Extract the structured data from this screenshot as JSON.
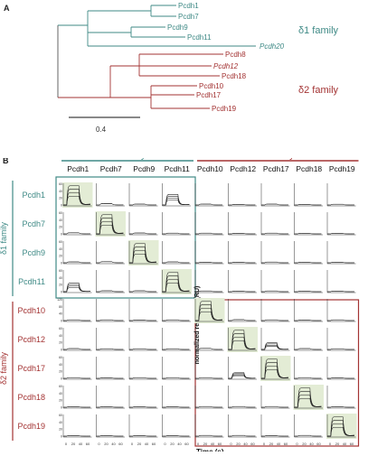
{
  "panel_a": {
    "label": "A",
    "group1": {
      "name": "δ1 family",
      "color": "#3f8a86",
      "members": [
        "Pcdh1",
        "Pcdh7",
        "Pcdh9",
        "Pcdh11",
        "Pcdh20"
      ]
    },
    "group2": {
      "name": "δ2 family",
      "color": "#a33333",
      "members": [
        "Pcdh8",
        "Pcdh12",
        "Pcdh18",
        "Pcdh10",
        "Pcdh17",
        "Pcdh19"
      ]
    },
    "italic_leaves": [
      "Pcdh20",
      "Pcdh12"
    ],
    "scale_label": "0.4"
  },
  "panel_b": {
    "label": "B",
    "delta1_header": "δ1 family",
    "delta2_header": "δ2 family",
    "delta1_color": "#3f8a86",
    "delta2_color": "#a33333",
    "highlight_color": "#e3ecd5",
    "columns": [
      "Pcdh1",
      "Pcdh7",
      "Pcdh9",
      "Pcdh11",
      "Pcdh10",
      "Pcdh12",
      "Pcdh17",
      "Pcdh18",
      "Pcdh19"
    ],
    "rows": [
      "Pcdh1",
      "Pcdh7",
      "Pcdh9",
      "Pcdh11",
      "Pcdh10",
      "Pcdh12",
      "Pcdh17",
      "Pcdh18",
      "Pcdh19"
    ],
    "row_group1_label": "δ1 family",
    "row_group2_label": "δ2 family",
    "y_axis_label": "normalized response (RU)",
    "x_axis_label": "Time (s)",
    "x_ticks": [
      "0",
      "20",
      "40",
      "60"
    ],
    "row_scales": [
      [
        "60",
        "40",
        "20",
        "0"
      ],
      [
        "60",
        "40",
        "20",
        "0"
      ],
      [
        "60",
        "40",
        "20",
        "0"
      ],
      [
        "60",
        "40",
        "20",
        "0"
      ],
      [
        "120",
        "80",
        "40",
        "0"
      ],
      [
        "60",
        "40",
        "20",
        "0"
      ],
      [
        "60",
        "40",
        "20",
        "0"
      ],
      [
        "60",
        "40",
        "20",
        "0"
      ],
      [
        "60",
        "40",
        "20",
        "0"
      ]
    ],
    "responses": [
      [
        1.0,
        0.08,
        0.05,
        0.55,
        0.05,
        0.03,
        0.05,
        0.03,
        0.04
      ],
      [
        0.06,
        1.0,
        0.05,
        0.04,
        0.04,
        0.03,
        0.04,
        0.03,
        0.03
      ],
      [
        0.05,
        0.06,
        1.0,
        0.05,
        0.03,
        0.03,
        0.04,
        0.03,
        0.03
      ],
      [
        0.45,
        0.05,
        0.05,
        1.0,
        0.04,
        0.03,
        0.04,
        0.03,
        0.03
      ],
      [
        0.04,
        0.04,
        0.03,
        0.04,
        1.0,
        0.05,
        0.04,
        0.03,
        0.04
      ],
      [
        0.05,
        0.04,
        0.04,
        0.04,
        0.06,
        1.0,
        0.35,
        0.05,
        0.04
      ],
      [
        0.04,
        0.03,
        0.04,
        0.04,
        0.04,
        0.3,
        1.0,
        0.04,
        0.03
      ],
      [
        0.03,
        0.03,
        0.03,
        0.03,
        0.04,
        0.04,
        0.04,
        1.0,
        0.03
      ],
      [
        0.03,
        0.03,
        0.03,
        0.03,
        0.04,
        0.04,
        0.03,
        0.04,
        1.0
      ]
    ]
  }
}
